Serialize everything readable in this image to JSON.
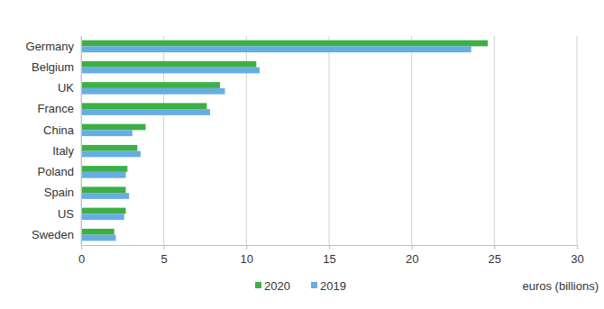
{
  "chart_data": {
    "type": "bar",
    "orientation": "horizontal",
    "categories": [
      "Germany",
      "Belgium",
      "UK",
      "France",
      "China",
      "Italy",
      "Poland",
      "Spain",
      "US",
      "Sweden"
    ],
    "series": [
      {
        "name": "2020",
        "color": "#3cb043",
        "values": [
          24.6,
          10.6,
          8.4,
          7.6,
          3.9,
          3.4,
          2.8,
          2.7,
          2.7,
          2.0
        ]
      },
      {
        "name": "2019",
        "color": "#66ade3",
        "values": [
          23.6,
          10.8,
          8.7,
          7.8,
          3.1,
          3.6,
          2.7,
          2.9,
          2.6,
          2.1
        ]
      }
    ],
    "x_label": "euros (billions)",
    "xlim": [
      0,
      30
    ],
    "xticks": [
      0,
      5,
      10,
      15,
      20,
      25,
      30
    ],
    "grid": true,
    "legend": "bottom"
  }
}
